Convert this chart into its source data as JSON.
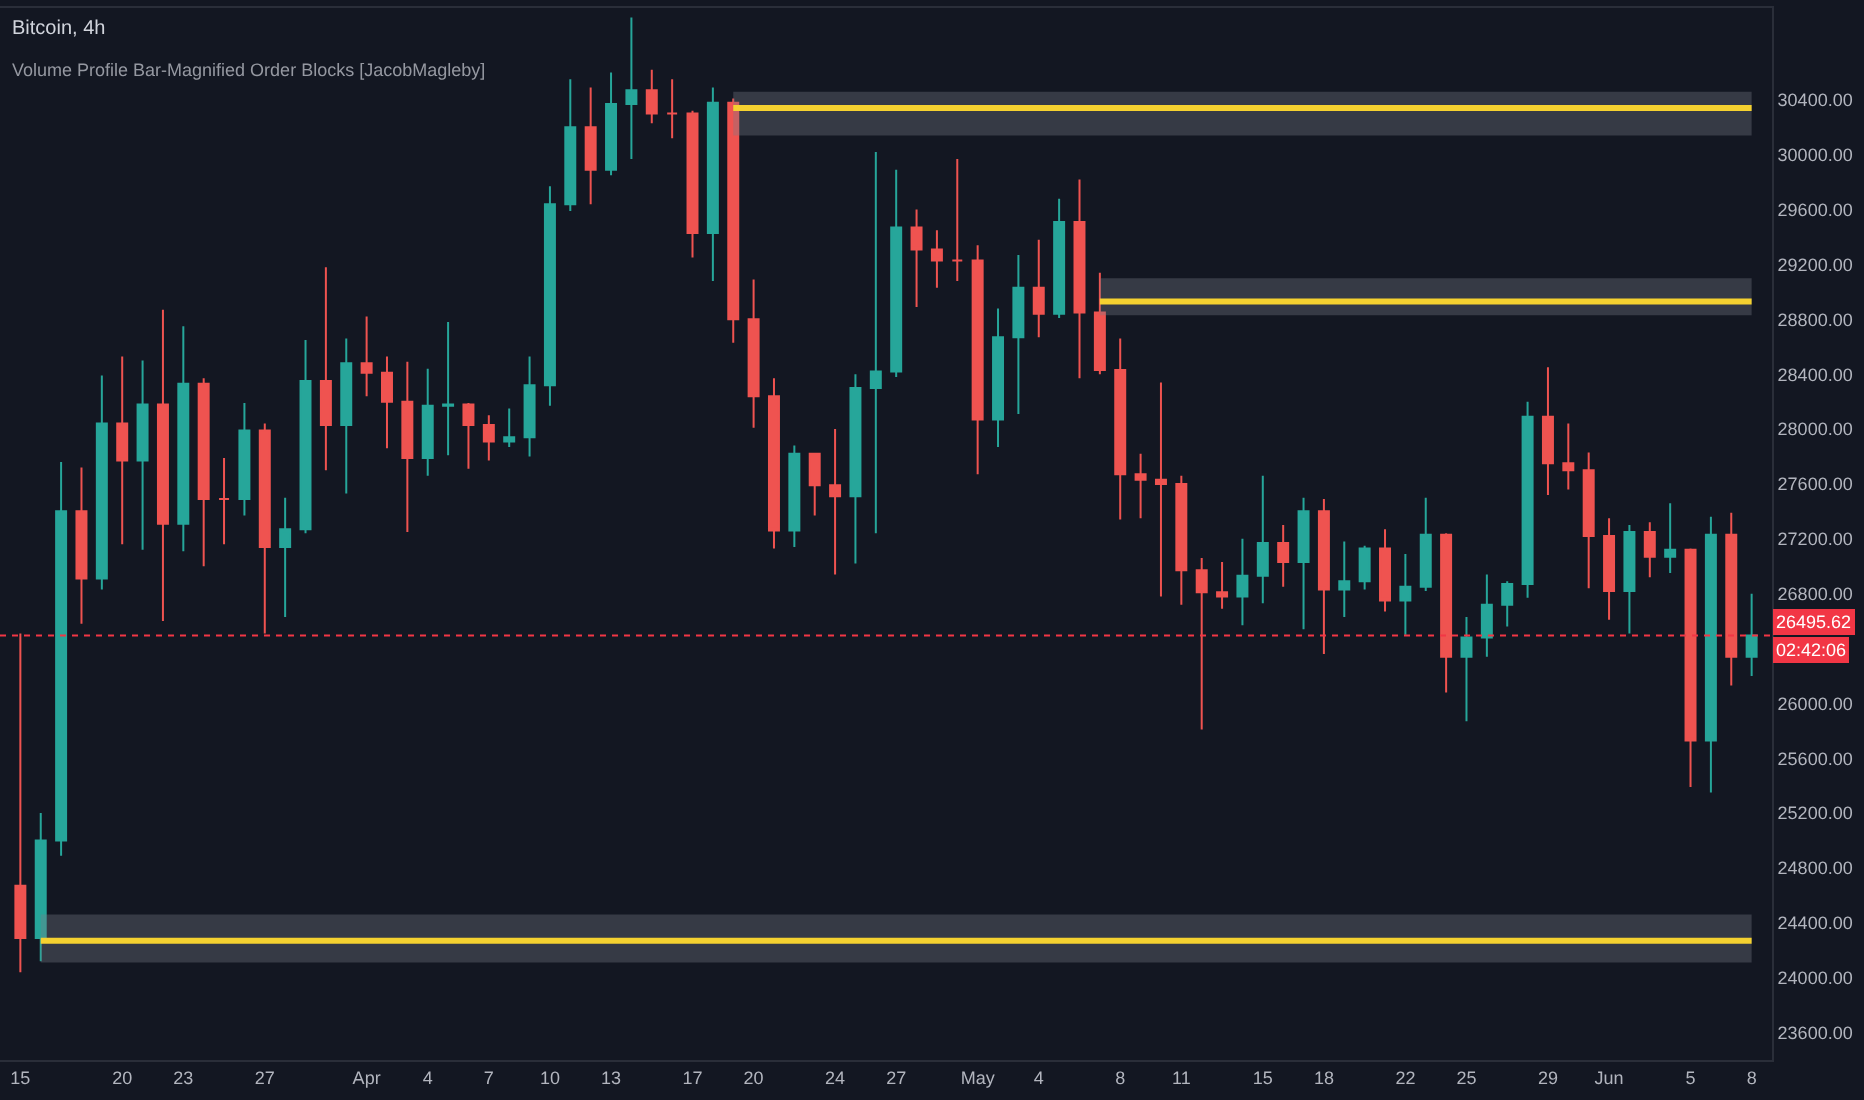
{
  "chart_data": {
    "type": "candlestick",
    "title": "Bitcoin, 4h",
    "subtitle": "Volume Profile Bar-Magnified Order Blocks [JacobMagleby]",
    "x": [
      "--03-15",
      "--03-16",
      "--03-17",
      "--03-18",
      "--03-19",
      "--03-20",
      "--03-21",
      "--03-22",
      "--03-23",
      "--03-24",
      "--03-25",
      "--03-26",
      "--03-27",
      "--03-28",
      "--03-29",
      "--03-30",
      "--03-31",
      "--04-01",
      "--04-02",
      "--04-03",
      "--04-04",
      "--04-05",
      "--04-06",
      "--04-07",
      "--04-08",
      "--04-09",
      "--04-10",
      "--04-11",
      "--04-12",
      "--04-13",
      "--04-14",
      "--04-15",
      "--04-16",
      "--04-17",
      "--04-18",
      "--04-19",
      "--04-20",
      "--04-21",
      "--04-22",
      "--04-23",
      "--04-24",
      "--04-25",
      "--04-26",
      "--04-27",
      "--04-28",
      "--04-29",
      "--04-30",
      "--05-01",
      "--05-02",
      "--05-03",
      "--05-04",
      "--05-05",
      "--05-06",
      "--05-07",
      "--05-08",
      "--05-09",
      "--05-10",
      "--05-11",
      "--05-12",
      "--05-13",
      "--05-14",
      "--05-15",
      "--05-16",
      "--05-17",
      "--05-18",
      "--05-19",
      "--05-20",
      "--05-21",
      "--05-22",
      "--05-23",
      "--05-24",
      "--05-25",
      "--05-26",
      "--05-27",
      "--05-28",
      "--05-29",
      "--05-30",
      "--05-31",
      "--06-01",
      "--06-02",
      "--06-03",
      "--06-04",
      "--06-05",
      "--06-06",
      "--06-07",
      "--06-08"
    ],
    "ohlc": [
      [
        24670,
        26510,
        24040,
        24290
      ],
      [
        24290,
        25200,
        24120,
        25000
      ],
      [
        25000,
        27760,
        24890,
        27400
      ],
      [
        27400,
        27720,
        26580,
        26910
      ],
      [
        26910,
        28390,
        26830,
        28040
      ],
      [
        28040,
        28530,
        27160,
        27770
      ],
      [
        27770,
        28500,
        27120,
        28180
      ],
      [
        28180,
        28870,
        26600,
        27310
      ],
      [
        27310,
        28750,
        27110,
        28330
      ],
      [
        28330,
        28370,
        27000,
        27490
      ],
      [
        27490,
        27790,
        27160,
        27490
      ],
      [
        27490,
        28190,
        27370,
        27990
      ],
      [
        27990,
        28040,
        26510,
        27140
      ],
      [
        27140,
        27500,
        26630,
        27270
      ],
      [
        27270,
        28650,
        27240,
        28350
      ],
      [
        28350,
        29180,
        27700,
        28030
      ],
      [
        28030,
        28660,
        27530,
        28480
      ],
      [
        28480,
        28820,
        28240,
        28410
      ],
      [
        28410,
        28530,
        27860,
        28200
      ],
      [
        28200,
        28490,
        27250,
        27790
      ],
      [
        27790,
        28440,
        27660,
        28170
      ],
      [
        28170,
        28780,
        27810,
        28180
      ],
      [
        28180,
        28190,
        27710,
        28030
      ],
      [
        28030,
        28100,
        27770,
        27910
      ],
      [
        27910,
        28150,
        27870,
        27940
      ],
      [
        27940,
        28530,
        27800,
        28320
      ],
      [
        28320,
        29770,
        28170,
        29640
      ],
      [
        29640,
        30550,
        29590,
        30200
      ],
      [
        30200,
        30490,
        29640,
        29890
      ],
      [
        29890,
        30600,
        29850,
        30370
      ],
      [
        30370,
        31000,
        29970,
        30470
      ],
      [
        30470,
        30620,
        30230,
        30300
      ],
      [
        30300,
        30550,
        30120,
        30300
      ],
      [
        30300,
        30320,
        29250,
        29430
      ],
      [
        29430,
        30490,
        29080,
        30380
      ],
      [
        30380,
        30410,
        28630,
        28800
      ],
      [
        28800,
        29090,
        28010,
        28240
      ],
      [
        28240,
        28370,
        27130,
        27260
      ],
      [
        27260,
        27880,
        27140,
        27820
      ],
      [
        27820,
        27820,
        27370,
        27590
      ],
      [
        27590,
        28000,
        26940,
        27510
      ],
      [
        27510,
        28400,
        27020,
        28300
      ],
      [
        28300,
        30020,
        27240,
        28420
      ],
      [
        28420,
        29890,
        28380,
        29470
      ],
      [
        29470,
        29600,
        28890,
        29310
      ],
      [
        29310,
        29450,
        29030,
        29230
      ],
      [
        29230,
        29970,
        29080,
        29230
      ],
      [
        29230,
        29340,
        27670,
        28070
      ],
      [
        28070,
        28880,
        27870,
        28670
      ],
      [
        28670,
        29270,
        28110,
        29030
      ],
      [
        29030,
        29380,
        28670,
        28840
      ],
      [
        28840,
        29680,
        28810,
        29510
      ],
      [
        29510,
        29820,
        28370,
        28850
      ],
      [
        28850,
        29140,
        28400,
        28430
      ],
      [
        28430,
        28660,
        27340,
        27670
      ],
      [
        27670,
        27820,
        27350,
        27630
      ],
      [
        27630,
        28340,
        26780,
        27600
      ],
      [
        27600,
        27660,
        26720,
        26970
      ],
      [
        26970,
        27060,
        25810,
        26810
      ],
      [
        26810,
        27030,
        26690,
        26780
      ],
      [
        26780,
        27200,
        26570,
        26930
      ],
      [
        26930,
        27660,
        26730,
        27170
      ],
      [
        27170,
        27300,
        26850,
        27030
      ],
      [
        27030,
        27500,
        26540,
        27400
      ],
      [
        27400,
        27490,
        26360,
        26830
      ],
      [
        26830,
        27180,
        26630,
        26890
      ],
      [
        26890,
        27150,
        26830,
        27130
      ],
      [
        27130,
        27270,
        26670,
        26750
      ],
      [
        26750,
        27090,
        26500,
        26850
      ],
      [
        26850,
        27500,
        26820,
        27230
      ],
      [
        27230,
        27240,
        26080,
        26340
      ],
      [
        26340,
        26630,
        25870,
        26480
      ],
      [
        26480,
        26940,
        26340,
        26720
      ],
      [
        26720,
        26890,
        26560,
        26870
      ],
      [
        26870,
        28200,
        26770,
        28090
      ],
      [
        28090,
        28450,
        27520,
        27750
      ],
      [
        27750,
        28040,
        27560,
        27700
      ],
      [
        27700,
        27830,
        26840,
        27220
      ],
      [
        27220,
        27350,
        26610,
        26820
      ],
      [
        26820,
        27300,
        26510,
        27250
      ],
      [
        27250,
        27320,
        26920,
        27070
      ],
      [
        27070,
        27460,
        26950,
        27120
      ],
      [
        27120,
        27130,
        25390,
        25730
      ],
      [
        25730,
        27360,
        25350,
        27230
      ],
      [
        27230,
        27390,
        26130,
        26340
      ],
      [
        26340,
        26800,
        26200,
        26495.62
      ]
    ],
    "series": [
      {
        "type": "line",
        "color": "#f5d130",
        "x": [
          "--04-19",
          "--06-08"
        ],
        "values": [
          30340,
          30340
        ],
        "lower": [
          30140,
          30140
        ],
        "upper": [
          30460,
          30460
        ]
      },
      {
        "type": "line",
        "color": "#f5d130",
        "x": [
          "--05-07",
          "--06-08"
        ],
        "values": [
          28930,
          28930
        ],
        "lower": [
          28830,
          28830
        ],
        "upper": [
          29100,
          29100
        ]
      },
      {
        "type": "line",
        "color": "#f5d130",
        "x": [
          "--03-16",
          "--06-08"
        ],
        "values": [
          24270,
          24270
        ],
        "lower": [
          24110,
          24110
        ],
        "upper": [
          24460,
          24460
        ]
      }
    ],
    "ref_lines": [
      {
        "axis": "y",
        "value": 26495.62,
        "label": "26495.62",
        "color": "#f23645",
        "line_style": "dotted"
      }
    ],
    "annotations": [
      "02:42:06"
    ],
    "xlim": [
      "--03-14",
      "--06-09"
    ],
    "xticks": [
      {
        "value": "--03-15",
        "label": "15"
      },
      {
        "value": "--03-20",
        "label": "20"
      },
      {
        "value": "--03-23",
        "label": "23"
      },
      {
        "value": "--03-27",
        "label": "27"
      },
      {
        "value": "--04-01",
        "label": "Apr"
      },
      {
        "value": "--04-04",
        "label": "4"
      },
      {
        "value": "--04-07",
        "label": "7"
      },
      {
        "value": "--04-10",
        "label": "10"
      },
      {
        "value": "--04-13",
        "label": "13"
      },
      {
        "value": "--04-17",
        "label": "17"
      },
      {
        "value": "--04-20",
        "label": "20"
      },
      {
        "value": "--04-24",
        "label": "24"
      },
      {
        "value": "--04-27",
        "label": "27"
      },
      {
        "value": "--05-01",
        "label": "May"
      },
      {
        "value": "--05-04",
        "label": "4"
      },
      {
        "value": "--05-08",
        "label": "8"
      },
      {
        "value": "--05-11",
        "label": "11"
      },
      {
        "value": "--05-15",
        "label": "15"
      },
      {
        "value": "--05-18",
        "label": "18"
      },
      {
        "value": "--05-22",
        "label": "22"
      },
      {
        "value": "--05-25",
        "label": "25"
      },
      {
        "value": "--05-29",
        "label": "29"
      },
      {
        "value": "--06-01",
        "label": "Jun"
      },
      {
        "value": "--06-05",
        "label": "5"
      },
      {
        "value": "--06-08",
        "label": "8"
      }
    ],
    "ylim": [
      23400,
      31070
    ],
    "yticks": [
      {
        "value": 23600,
        "label": "23600.00"
      },
      {
        "value": 24000,
        "label": "24000.00"
      },
      {
        "value": 24400,
        "label": "24400.00"
      },
      {
        "value": 24800,
        "label": "24800.00"
      },
      {
        "value": 25200,
        "label": "25200.00"
      },
      {
        "value": 25600,
        "label": "25600.00"
      },
      {
        "value": 26000,
        "label": "26000.00"
      },
      {
        "value": 26800,
        "label": "26800.00"
      },
      {
        "value": 27200,
        "label": "27200.00"
      },
      {
        "value": 27600,
        "label": "27600.00"
      },
      {
        "value": 28000,
        "label": "28000.00"
      },
      {
        "value": 28400,
        "label": "28400.00"
      },
      {
        "value": 28800,
        "label": "28800.00"
      },
      {
        "value": 29200,
        "label": "29200.00"
      },
      {
        "value": 29600,
        "label": "29600.00"
      },
      {
        "value": 30000,
        "label": "30000.00"
      },
      {
        "value": 30400,
        "label": "30400.00"
      }
    ],
    "grid": false
  }
}
